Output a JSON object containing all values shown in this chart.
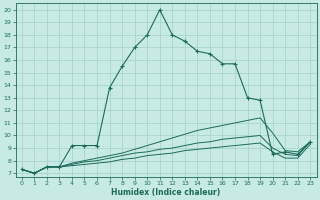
{
  "xlabel": "Humidex (Indice chaleur)",
  "ylabel": "",
  "bg_color": "#c8eae4",
  "grid_color": "#aad4ce",
  "line_color": "#1a6b5a",
  "xlim": [
    -0.5,
    23.5
  ],
  "ylim": [
    6.7,
    20.5
  ],
  "xticks": [
    0,
    1,
    2,
    3,
    4,
    5,
    6,
    7,
    8,
    9,
    10,
    11,
    12,
    13,
    14,
    15,
    16,
    17,
    18,
    19,
    20,
    21,
    22,
    23
  ],
  "yticks": [
    7,
    8,
    9,
    10,
    11,
    12,
    13,
    14,
    15,
    16,
    17,
    18,
    19,
    20
  ],
  "lines": [
    {
      "x": [
        0,
        1,
        2,
        3,
        4,
        5,
        6,
        7,
        8,
        9,
        10,
        11,
        12,
        13,
        14,
        15,
        16,
        17,
        18,
        19,
        20,
        21,
        22,
        23
      ],
      "y": [
        7.3,
        7.0,
        7.5,
        7.5,
        9.2,
        9.2,
        9.2,
        13.8,
        15.5,
        17.0,
        18.0,
        20.0,
        18.0,
        17.5,
        16.7,
        16.5,
        15.7,
        15.7,
        13.0,
        12.8,
        8.5,
        8.7,
        8.5,
        9.5
      ],
      "marker": true
    },
    {
      "x": [
        0,
        1,
        2,
        3,
        4,
        5,
        6,
        7,
        8,
        9,
        10,
        11,
        12,
        13,
        14,
        15,
        16,
        17,
        18,
        19,
        20,
        21,
        22,
        23
      ],
      "y": [
        7.3,
        7.0,
        7.5,
        7.5,
        7.8,
        8.0,
        8.2,
        8.4,
        8.6,
        8.9,
        9.2,
        9.5,
        9.8,
        10.1,
        10.4,
        10.6,
        10.8,
        11.0,
        11.2,
        11.4,
        10.2,
        8.8,
        8.7,
        9.5
      ],
      "marker": false
    },
    {
      "x": [
        0,
        1,
        2,
        3,
        4,
        5,
        6,
        7,
        8,
        9,
        10,
        11,
        12,
        13,
        14,
        15,
        16,
        17,
        18,
        19,
        20,
        21,
        22,
        23
      ],
      "y": [
        7.3,
        7.0,
        7.5,
        7.5,
        7.7,
        7.9,
        8.0,
        8.2,
        8.4,
        8.6,
        8.7,
        8.9,
        9.0,
        9.2,
        9.4,
        9.5,
        9.7,
        9.8,
        9.9,
        10.0,
        9.0,
        8.5,
        8.4,
        9.5
      ],
      "marker": false
    },
    {
      "x": [
        0,
        1,
        2,
        3,
        4,
        5,
        6,
        7,
        8,
        9,
        10,
        11,
        12,
        13,
        14,
        15,
        16,
        17,
        18,
        19,
        20,
        21,
        22,
        23
      ],
      "y": [
        7.3,
        7.0,
        7.5,
        7.5,
        7.6,
        7.7,
        7.8,
        7.9,
        8.1,
        8.2,
        8.4,
        8.5,
        8.6,
        8.8,
        8.9,
        9.0,
        9.1,
        9.2,
        9.3,
        9.4,
        8.7,
        8.2,
        8.2,
        9.3
      ],
      "marker": false
    }
  ]
}
